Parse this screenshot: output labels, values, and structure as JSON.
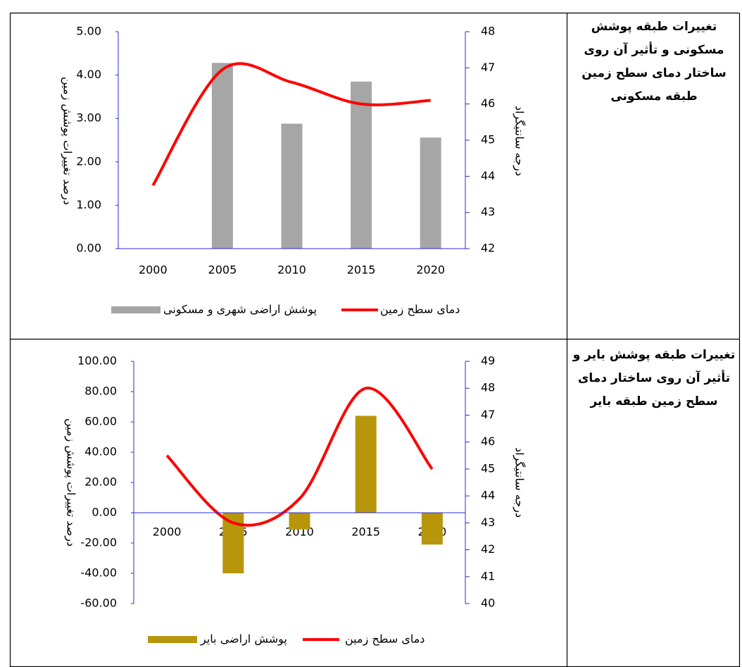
{
  "rows": [
    {
      "label": "تغییرات طبقه پوشش مسکونی و تأثیر آن روی ساختار دمای سطح زمین طبقه مسکونی"
    },
    {
      "label": "تغییرات طبقه پوشش بایر و تأثیر آن روی ساختار دمای سطح زمین طبقه بایر"
    }
  ],
  "chart_data": [
    {
      "type": "combo",
      "categories": [
        "2000",
        "2005",
        "2010",
        "2015",
        "2020"
      ],
      "ylabel": "درصد تغییرات پوشش زمین",
      "y2label": "درجه سانتیگراد",
      "ylim": [
        0,
        5
      ],
      "yticks": [
        {
          "value": 0,
          "label": "0.00"
        },
        {
          "value": 1,
          "label": "1.00"
        },
        {
          "value": 2,
          "label": "2.00"
        },
        {
          "value": 3,
          "label": "3.00"
        },
        {
          "value": 4,
          "label": "4.00"
        },
        {
          "value": 5,
          "label": "5.00"
        }
      ],
      "y2lim": [
        42,
        48
      ],
      "y2ticks": [
        42,
        43,
        44,
        45,
        46,
        47,
        48
      ],
      "series": [
        {
          "name": "پوشش اراضی شهری و مسکونی",
          "type": "bar",
          "color": "#a6a6a6",
          "values": [
            0,
            4.28,
            2.88,
            3.85,
            2.56
          ]
        },
        {
          "name": "دمای سطح زمین",
          "type": "line",
          "axis": "y2",
          "color": "#ff0000",
          "values": [
            43.75,
            46.95,
            46.6,
            46.0,
            46.1
          ]
        }
      ]
    },
    {
      "type": "combo",
      "categories": [
        "2000",
        "2005",
        "2010",
        "2015",
        "2020"
      ],
      "ylabel": "درصد تغییرات پوشش زمین",
      "y2label": "درجه سانتیگراد",
      "ylim": [
        -60,
        100
      ],
      "yticks": [
        {
          "value": -60,
          "label": "-60.00"
        },
        {
          "value": -40,
          "label": "-40.00"
        },
        {
          "value": -20,
          "label": "-20.00"
        },
        {
          "value": 0,
          "label": "0.00"
        },
        {
          "value": 20,
          "label": "20.00"
        },
        {
          "value": 40,
          "label": "40.00"
        },
        {
          "value": 60,
          "label": "60.00"
        },
        {
          "value": 80,
          "label": "80.00"
        },
        {
          "value": 100,
          "label": "100.00"
        }
      ],
      "y2lim": [
        40,
        49
      ],
      "y2ticks": [
        40,
        41,
        42,
        43,
        44,
        45,
        46,
        47,
        48,
        49
      ],
      "series": [
        {
          "name": "پوشش اراضی بایر",
          "type": "bar",
          "color": "#b8960b",
          "values": [
            0,
            -40,
            -11,
            64,
            -21
          ]
        },
        {
          "name": "دمای سطح زمین",
          "type": "line",
          "axis": "y2",
          "color": "#ff0000",
          "values": [
            45.5,
            43.0,
            43.9,
            48.0,
            45.0
          ]
        }
      ]
    }
  ]
}
